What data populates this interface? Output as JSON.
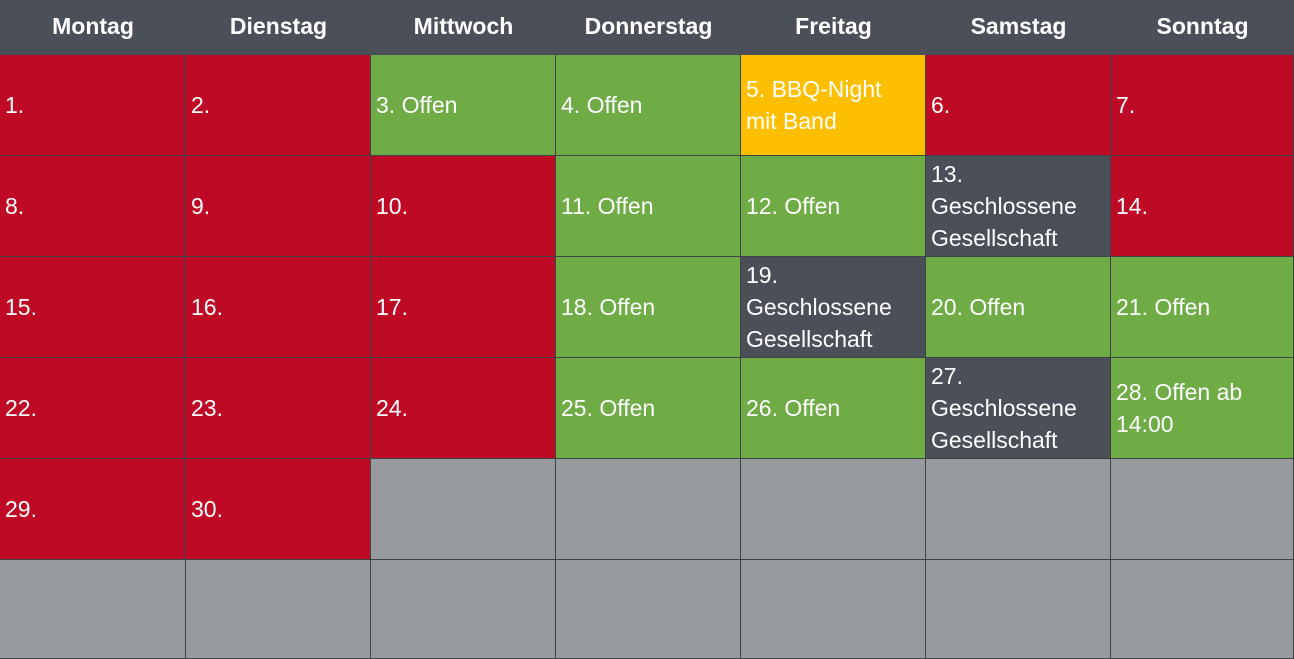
{
  "weekdays": [
    "Montag",
    "Dienstag",
    "Mittwoch",
    "Donnerstag",
    "Freitag",
    "Samstag",
    "Sonntag"
  ],
  "status_colors": {
    "red": "#be0a25",
    "green": "#6fac45",
    "dark": "#4b5058",
    "amber": "#fdbf00",
    "empty": "#979b9e"
  },
  "weeks": [
    [
      {
        "text": "1.",
        "status": "red"
      },
      {
        "text": "2.",
        "status": "red"
      },
      {
        "text": "3.  Offen",
        "status": "green"
      },
      {
        "text": "4. Offen",
        "status": "green"
      },
      {
        "text": "5. BBQ-Night\nmit Band",
        "status": "amber"
      },
      {
        "text": "6.",
        "status": "red"
      },
      {
        "text": "7.",
        "status": "red"
      }
    ],
    [
      {
        "text": "8.",
        "status": "red"
      },
      {
        "text": "9.",
        "status": "red"
      },
      {
        "text": "10.",
        "status": "red"
      },
      {
        "text": "11. Offen",
        "status": "green"
      },
      {
        "text": "12. Offen",
        "status": "green"
      },
      {
        "text": "13.\nGeschlossene\nGesellschaft",
        "status": "dark"
      },
      {
        "text": "14.",
        "status": "red"
      }
    ],
    [
      {
        "text": "15.",
        "status": "red"
      },
      {
        "text": "16.",
        "status": "red"
      },
      {
        "text": "17.",
        "status": "red"
      },
      {
        "text": "18. Offen",
        "status": "green"
      },
      {
        "text": "19.\nGeschlossene\nGesellschaft",
        "status": "dark"
      },
      {
        "text": "20. Offen",
        "status": "green"
      },
      {
        "text": "21. Offen",
        "status": "green"
      }
    ],
    [
      {
        "text": "22.",
        "status": "red"
      },
      {
        "text": "23.",
        "status": "red"
      },
      {
        "text": "24.",
        "status": "red"
      },
      {
        "text": "25. Offen",
        "status": "green"
      },
      {
        "text": "26. Offen",
        "status": "green"
      },
      {
        "text": "27.\nGeschlossene\nGesellschaft",
        "status": "dark"
      },
      {
        "text": "28. Offen ab\n14:00",
        "status": "green"
      }
    ],
    [
      {
        "text": "29.",
        "status": "red"
      },
      {
        "text": "30.",
        "status": "red"
      },
      {
        "text": "",
        "status": "empty"
      },
      {
        "text": "",
        "status": "empty"
      },
      {
        "text": "",
        "status": "empty"
      },
      {
        "text": "",
        "status": "empty"
      },
      {
        "text": "",
        "status": "empty"
      }
    ],
    [
      {
        "text": "",
        "status": "empty"
      },
      {
        "text": "",
        "status": "empty"
      },
      {
        "text": "",
        "status": "empty"
      },
      {
        "text": "",
        "status": "empty"
      },
      {
        "text": "",
        "status": "empty"
      },
      {
        "text": "",
        "status": "empty"
      },
      {
        "text": "",
        "status": "empty"
      }
    ]
  ]
}
